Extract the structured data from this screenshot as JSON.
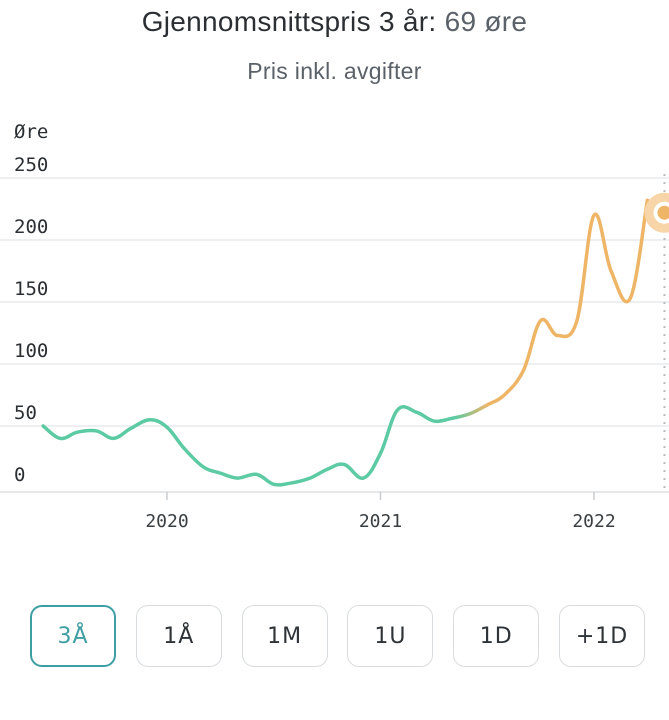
{
  "header": {
    "title_prefix": "Gjennomsnittspris 3 år:",
    "title_value": "69 øre",
    "subtitle": "Pris inkl. avgifter"
  },
  "colors": {
    "green": "#5ccaa3",
    "orange": "#efb567",
    "active": "#3f9ea4"
  },
  "chart_data": {
    "type": "line",
    "ylabel": "Øre",
    "ylim": [
      0,
      250
    ],
    "y_ticks": [
      "0",
      "50",
      "100",
      "150",
      "200",
      "250"
    ],
    "x_ticks": [
      "2020",
      "2021",
      "2022"
    ],
    "series": [
      {
        "name": "Pris",
        "x": [
          2019.42,
          2019.5,
          2019.58,
          2019.67,
          2019.75,
          2019.83,
          2019.92,
          2020.0,
          2020.08,
          2020.17,
          2020.25,
          2020.33,
          2020.42,
          2020.5,
          2020.58,
          2020.67,
          2020.75,
          2020.83,
          2020.92,
          2021.0,
          2021.08,
          2021.17,
          2021.25,
          2021.33,
          2021.42,
          2021.5,
          2021.58,
          2021.67,
          2021.75,
          2021.83,
          2021.92,
          2022.0,
          2022.08,
          2022.17,
          2022.25
        ],
        "y": [
          50,
          40,
          45,
          46,
          40,
          48,
          55,
          49,
          32,
          17,
          12,
          8,
          11,
          3,
          4,
          8,
          15,
          19,
          8,
          28,
          63,
          61,
          54,
          56,
          60,
          67,
          75,
          95,
          135,
          123,
          135,
          220,
          175,
          153,
          232
        ]
      }
    ],
    "current_point": {
      "x": 2022.33,
      "y": 222
    }
  },
  "range_buttons": [
    {
      "label": "3Å",
      "active": true
    },
    {
      "label": "1Å",
      "active": false
    },
    {
      "label": "1M",
      "active": false
    },
    {
      "label": "1U",
      "active": false
    },
    {
      "label": "1D",
      "active": false
    },
    {
      "label": "+1D",
      "active": false
    }
  ]
}
